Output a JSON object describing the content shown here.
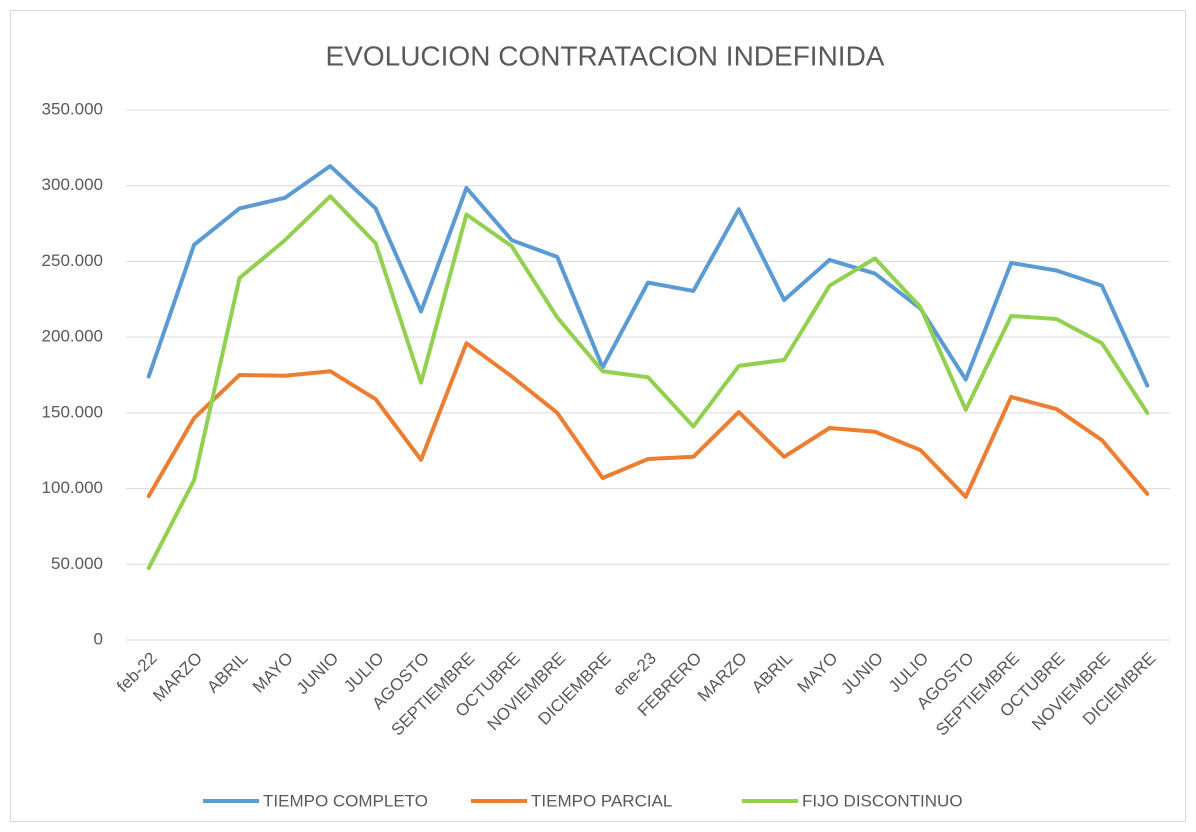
{
  "chart_data": {
    "type": "line",
    "title": "EVOLUCION CONTRATACION INDEFINIDA",
    "categories": [
      "feb-22",
      "MARZO",
      "ABRIL",
      "MAYO",
      "JUNIO",
      "JULIO",
      "AGOSTO",
      "SEPTIEMBRE",
      "OCTUBRE",
      "NOVIEMBRE",
      "DICIEMBRE",
      "ene-23",
      "FEBRERO",
      "MARZO",
      "ABRIL",
      "MAYO",
      "JUNIO",
      "JULIO",
      "AGOSTO",
      "SEPTIEMBRE",
      "OCTUBRE",
      "NOVIEMBRE",
      "DICIEMBRE"
    ],
    "series": [
      {
        "name": "TIEMPO COMPLETO",
        "color": "#5b9bd5",
        "values": [
          174000,
          261000,
          285000,
          292000,
          313000,
          285000,
          217000,
          298500,
          264000,
          253000,
          180000,
          236000,
          230500,
          284500,
          224500,
          251000,
          242000,
          219000,
          172000,
          249000,
          244000,
          234000,
          168000
        ]
      },
      {
        "name": "TIEMPO PARCIAL",
        "color": "#ed7d31",
        "values": [
          95000,
          146500,
          175000,
          174500,
          177500,
          159000,
          119000,
          196000,
          174000,
          150000,
          107000,
          119500,
          121000,
          150500,
          121000,
          140000,
          137500,
          125500,
          94500,
          160500,
          152500,
          132000,
          96500
        ]
      },
      {
        "name": "FIJO DISCONTINUO",
        "color": "#92d050",
        "values": [
          47500,
          105500,
          239000,
          264000,
          293000,
          262000,
          170000,
          281000,
          260000,
          213000,
          177500,
          173500,
          141000,
          181000,
          185000,
          234000,
          252000,
          220000,
          152000,
          214000,
          212000,
          196000,
          150000
        ]
      }
    ],
    "ylim": [
      0,
      350000
    ],
    "yticks": [
      0,
      {
        "value": 50000,
        "label": "50.000"
      },
      {
        "value": 100000,
        "label": "100.000"
      },
      {
        "value": 150000,
        "label": "150.000"
      },
      {
        "value": 200000,
        "label": "200.000"
      },
      {
        "value": 250000,
        "label": "250.000"
      },
      {
        "value": 300000,
        "label": "300.000"
      },
      {
        "value": 350000,
        "label": "350.000"
      }
    ],
    "grid": true,
    "legend": "bottom"
  }
}
